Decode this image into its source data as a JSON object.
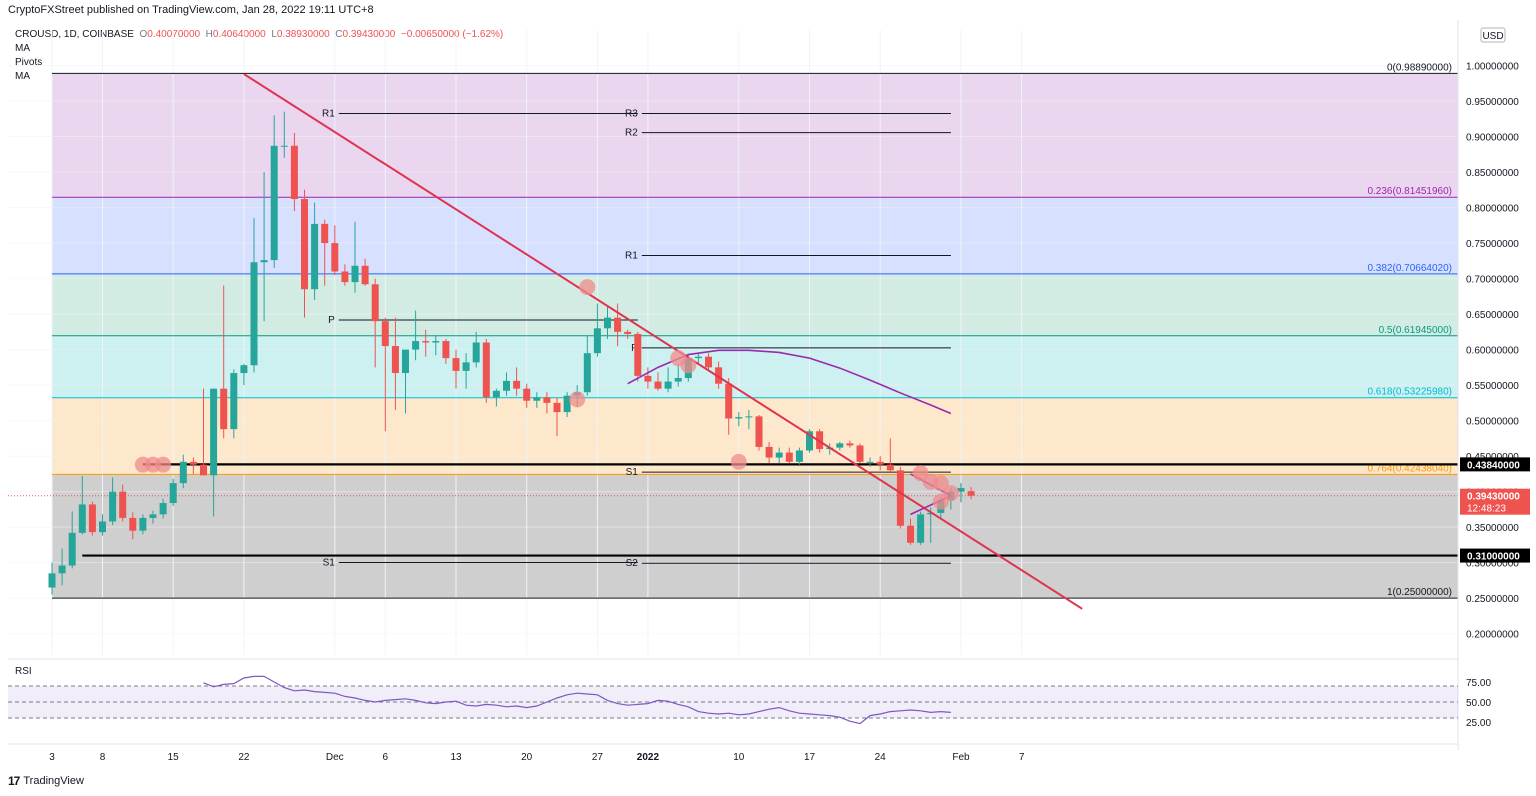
{
  "header": {
    "publisher": "CryptoFXStreet published on TradingView.com, Jan 28, 2022 19:11 UTC+8"
  },
  "legend": {
    "symbol": "CROUSD, 1D, COINBASE",
    "o_label": "O",
    "o_value": "0.40070000",
    "h_label": "H",
    "h_value": "0.40640000",
    "l_label": "L",
    "l_value": "0.38930000",
    "c_label": "C",
    "c_value": "0.39430000",
    "change": "−0.00650000 (−1.62%)",
    "indicators": [
      "MA",
      "Pivots",
      "MA"
    ]
  },
  "footer": {
    "brand": "TradingView"
  },
  "colors": {
    "up": "#26a69a",
    "down": "#ef5350",
    "trend": "#e0334f",
    "ma": "#9c27b0",
    "marker": "#f28b8b"
  },
  "chart_data": {
    "type": "candlestick",
    "symbol": "CROUSD",
    "timeframe": "1D",
    "exchange": "COINBASE",
    "currency": "USD",
    "ylim": [
      0.17,
      1.05
    ],
    "y_ticks": [
      "1.00000000",
      "0.95000000",
      "0.90000000",
      "0.85000000",
      "0.80000000",
      "0.75000000",
      "0.70000000",
      "0.65000000",
      "0.60000000",
      "0.55000000",
      "0.50000000",
      "0.45000000",
      "0.40000000",
      "0.35000000",
      "0.30000000",
      "0.25000000",
      "0.20000000"
    ],
    "y_tick_values": [
      1.0,
      0.95,
      0.9,
      0.85,
      0.8,
      0.75,
      0.7,
      0.65,
      0.6,
      0.55,
      0.5,
      0.45,
      0.4,
      0.35,
      0.3,
      0.25,
      0.2
    ],
    "x_start": "2021-11-03",
    "x_ticks": [
      {
        "label": "3",
        "day": 0
      },
      {
        "label": "8",
        "day": 5
      },
      {
        "label": "15",
        "day": 12
      },
      {
        "label": "22",
        "day": 19
      },
      {
        "label": "Dec",
        "day": 28
      },
      {
        "label": "6",
        "day": 33
      },
      {
        "label": "13",
        "day": 40
      },
      {
        "label": "20",
        "day": 47
      },
      {
        "label": "27",
        "day": 54
      },
      {
        "label": "2022",
        "day": 59
      },
      {
        "label": "10",
        "day": 68
      },
      {
        "label": "17",
        "day": 75
      },
      {
        "label": "24",
        "day": 82
      },
      {
        "label": "Feb",
        "day": 90
      },
      {
        "label": "7",
        "day": 96
      }
    ],
    "candles": [
      [
        0.265,
        0.3,
        0.255,
        0.285
      ],
      [
        0.285,
        0.32,
        0.268,
        0.296
      ],
      [
        0.296,
        0.372,
        0.292,
        0.342
      ],
      [
        0.342,
        0.422,
        0.34,
        0.382
      ],
      [
        0.382,
        0.386,
        0.338,
        0.343
      ],
      [
        0.343,
        0.368,
        0.338,
        0.358
      ],
      [
        0.358,
        0.42,
        0.353,
        0.4
      ],
      [
        0.4,
        0.41,
        0.358,
        0.363
      ],
      [
        0.363,
        0.371,
        0.333,
        0.345
      ],
      [
        0.345,
        0.368,
        0.34,
        0.363
      ],
      [
        0.363,
        0.373,
        0.355,
        0.368
      ],
      [
        0.368,
        0.39,
        0.362,
        0.384
      ],
      [
        0.384,
        0.418,
        0.38,
        0.412
      ],
      [
        0.412,
        0.452,
        0.405,
        0.442
      ],
      [
        0.442,
        0.448,
        0.425,
        0.438
      ],
      [
        0.438,
        0.545,
        0.43,
        0.423
      ],
      [
        0.423,
        0.545,
        0.365,
        0.545
      ],
      [
        0.545,
        0.69,
        0.475,
        0.488
      ],
      [
        0.488,
        0.572,
        0.475,
        0.567
      ],
      [
        0.567,
        0.58,
        0.55,
        0.578
      ],
      [
        0.578,
        0.785,
        0.568,
        0.723
      ],
      [
        0.723,
        0.85,
        0.64,
        0.726
      ],
      [
        0.726,
        0.93,
        0.715,
        0.887
      ],
      [
        0.887,
        0.935,
        0.87,
        0.887
      ],
      [
        0.887,
        0.905,
        0.795,
        0.812
      ],
      [
        0.812,
        0.825,
        0.645,
        0.685
      ],
      [
        0.685,
        0.807,
        0.67,
        0.777
      ],
      [
        0.777,
        0.783,
        0.69,
        0.75
      ],
      [
        0.75,
        0.775,
        0.705,
        0.71
      ],
      [
        0.71,
        0.72,
        0.69,
        0.695
      ],
      [
        0.695,
        0.78,
        0.68,
        0.718
      ],
      [
        0.718,
        0.728,
        0.69,
        0.692
      ],
      [
        0.692,
        0.7,
        0.575,
        0.64
      ],
      [
        0.64,
        0.645,
        0.485,
        0.605
      ],
      [
        0.605,
        0.645,
        0.515,
        0.567
      ],
      [
        0.567,
        0.595,
        0.51,
        0.6
      ],
      [
        0.6,
        0.655,
        0.585,
        0.612
      ],
      [
        0.612,
        0.628,
        0.59,
        0.61
      ],
      [
        0.61,
        0.62,
        0.592,
        0.612
      ],
      [
        0.612,
        0.615,
        0.58,
        0.588
      ],
      [
        0.588,
        0.6,
        0.545,
        0.57
      ],
      [
        0.57,
        0.595,
        0.545,
        0.582
      ],
      [
        0.582,
        0.625,
        0.575,
        0.61
      ],
      [
        0.61,
        0.615,
        0.525,
        0.533
      ],
      [
        0.533,
        0.545,
        0.52,
        0.542
      ],
      [
        0.542,
        0.568,
        0.535,
        0.556
      ],
      [
        0.556,
        0.575,
        0.535,
        0.545
      ],
      [
        0.545,
        0.552,
        0.518,
        0.528
      ],
      [
        0.528,
        0.54,
        0.518,
        0.533
      ],
      [
        0.533,
        0.54,
        0.51,
        0.525
      ],
      [
        0.525,
        0.532,
        0.478,
        0.512
      ],
      [
        0.512,
        0.54,
        0.505,
        0.535
      ],
      [
        0.535,
        0.55,
        0.52,
        0.54
      ],
      [
        0.54,
        0.62,
        0.535,
        0.595
      ],
      [
        0.595,
        0.665,
        0.59,
        0.63
      ],
      [
        0.63,
        0.66,
        0.615,
        0.645
      ],
      [
        0.645,
        0.665,
        0.605,
        0.625
      ],
      [
        0.625,
        0.628,
        0.615,
        0.622
      ],
      [
        0.622,
        0.625,
        0.555,
        0.563
      ],
      [
        0.563,
        0.575,
        0.545,
        0.555
      ],
      [
        0.555,
        0.568,
        0.542,
        0.545
      ],
      [
        0.545,
        0.575,
        0.54,
        0.555
      ],
      [
        0.555,
        0.58,
        0.548,
        0.56
      ],
      [
        0.56,
        0.592,
        0.555,
        0.588
      ],
      [
        0.588,
        0.595,
        0.58,
        0.59
      ],
      [
        0.59,
        0.595,
        0.57,
        0.575
      ],
      [
        0.575,
        0.583,
        0.545,
        0.552
      ],
      [
        0.552,
        0.56,
        0.48,
        0.503
      ],
      [
        0.503,
        0.512,
        0.492,
        0.505
      ],
      [
        0.505,
        0.515,
        0.488,
        0.506
      ],
      [
        0.506,
        0.508,
        0.458,
        0.463
      ],
      [
        0.463,
        0.47,
        0.44,
        0.448
      ],
      [
        0.448,
        0.462,
        0.44,
        0.455
      ],
      [
        0.455,
        0.462,
        0.44,
        0.442
      ],
      [
        0.442,
        0.462,
        0.438,
        0.458
      ],
      [
        0.458,
        0.488,
        0.455,
        0.485
      ],
      [
        0.485,
        0.488,
        0.455,
        0.46
      ],
      [
        0.46,
        0.468,
        0.452,
        0.462
      ],
      [
        0.462,
        0.47,
        0.458,
        0.468
      ],
      [
        0.468,
        0.472,
        0.462,
        0.465
      ],
      [
        0.465,
        0.468,
        0.44,
        0.442
      ],
      [
        0.442,
        0.448,
        0.435,
        0.442
      ],
      [
        0.442,
        0.45,
        0.43,
        0.438
      ],
      [
        0.438,
        0.475,
        0.428,
        0.43
      ],
      [
        0.43,
        0.435,
        0.348,
        0.352
      ],
      [
        0.352,
        0.362,
        0.325,
        0.328
      ],
      [
        0.328,
        0.372,
        0.325,
        0.368
      ],
      [
        0.368,
        0.378,
        0.328,
        0.37
      ],
      [
        0.37,
        0.392,
        0.362,
        0.388
      ],
      [
        0.388,
        0.405,
        0.375,
        0.4
      ],
      [
        0.4,
        0.412,
        0.385,
        0.405
      ],
      [
        0.4007,
        0.4064,
        0.3893,
        0.3943
      ]
    ],
    "ma_points": [
      [
        57,
        0.552
      ],
      [
        60,
        0.575
      ],
      [
        63,
        0.593
      ],
      [
        66,
        0.599
      ],
      [
        69,
        0.599
      ],
      [
        72,
        0.596
      ],
      [
        75,
        0.588
      ],
      [
        78,
        0.574
      ],
      [
        81,
        0.557
      ],
      [
        84,
        0.539
      ],
      [
        87,
        0.522
      ],
      [
        89,
        0.51
      ]
    ],
    "fib_levels": [
      {
        "label": "0(0.98890000)",
        "value": 0.9889
      },
      {
        "label": "0.236(0.81451960)",
        "value": 0.8145196
      },
      {
        "label": "0.382(0.70664020)",
        "value": 0.7066402
      },
      {
        "label": "0.5(0.61945000)",
        "value": 0.61945
      },
      {
        "label": "0.618(0.53225980)",
        "value": 0.5322598
      },
      {
        "label": "0.764(0.42438040)",
        "value": 0.4243804
      },
      {
        "label": "1(0.25000000)",
        "value": 0.25
      }
    ],
    "pivots": [
      {
        "label": "R1",
        "value": 0.9325,
        "x0": 28,
        "x1": 58
      },
      {
        "label": "P",
        "value": 0.6417,
        "x0": 28,
        "x1": 58
      },
      {
        "label": "S1",
        "value": 0.3002,
        "x0": 28,
        "x1": 58
      },
      {
        "label": "R3",
        "value": 0.9325,
        "x0": 58,
        "x1": 89
      },
      {
        "label": "R2",
        "value": 0.9055,
        "x0": 58,
        "x1": 89
      },
      {
        "label": "R1",
        "value": 0.7325,
        "x0": 58,
        "x1": 89
      },
      {
        "label": "P",
        "value": 0.6025,
        "x0": 58,
        "x1": 89
      },
      {
        "label": "S1",
        "value": 0.4275,
        "x0": 58,
        "x1": 89
      },
      {
        "label": "S2",
        "value": 0.2992,
        "x0": 58,
        "x1": 89
      }
    ],
    "horizontal_levels": [
      {
        "label": "0.43840000",
        "value": 0.4384,
        "x0": 9
      },
      {
        "label": "0.31000000",
        "value": 0.31,
        "x0": 3
      }
    ],
    "current_price": {
      "label": "0.39430000",
      "countdown": "12:48:23",
      "value": 0.3943
    },
    "trendline": {
      "from": [
        19,
        0.988
      ],
      "to": [
        102,
        0.235
      ]
    },
    "triangle": {
      "apex": [
        89,
        0.3943
      ],
      "upper": [
        85,
        0.425
      ],
      "lower": [
        85,
        0.368
      ]
    },
    "markers": [
      [
        9,
        0.438
      ],
      [
        10,
        0.438
      ],
      [
        11,
        0.438
      ],
      [
        52,
        0.53
      ],
      [
        53,
        0.688
      ],
      [
        62,
        0.588
      ],
      [
        63,
        0.578
      ],
      [
        68,
        0.442
      ],
      [
        86,
        0.426
      ],
      [
        87,
        0.414
      ],
      [
        88,
        0.412
      ],
      [
        88,
        0.386
      ],
      [
        89,
        0.398
      ]
    ],
    "rsi": {
      "label": "RSI",
      "ticks": [
        "75.00",
        "50.00",
        "25.00"
      ],
      "tick_values": [
        75,
        50,
        25
      ],
      "band": [
        30,
        70
      ],
      "points": [
        [
          15,
          74
        ],
        [
          16,
          69
        ],
        [
          17,
          72
        ],
        [
          18,
          73
        ],
        [
          19,
          80
        ],
        [
          20,
          82
        ],
        [
          21,
          82
        ],
        [
          22,
          75
        ],
        [
          23,
          68
        ],
        [
          24,
          64
        ],
        [
          25,
          65
        ],
        [
          26,
          63
        ],
        [
          27,
          62
        ],
        [
          28,
          61
        ],
        [
          29,
          57
        ],
        [
          30,
          55
        ],
        [
          31,
          52
        ],
        [
          32,
          50
        ],
        [
          33,
          52
        ],
        [
          34,
          53
        ],
        [
          35,
          54
        ],
        [
          36,
          52
        ],
        [
          37,
          49
        ],
        [
          38,
          48
        ],
        [
          39,
          50
        ],
        [
          40,
          51
        ],
        [
          41,
          46
        ],
        [
          42,
          45
        ],
        [
          43,
          47
        ],
        [
          44,
          46
        ],
        [
          45,
          44
        ],
        [
          46,
          45
        ],
        [
          47,
          43
        ],
        [
          48,
          45
        ],
        [
          49,
          50
        ],
        [
          50,
          55
        ],
        [
          51,
          59
        ],
        [
          52,
          61
        ],
        [
          53,
          60
        ],
        [
          54,
          59
        ],
        [
          55,
          52
        ],
        [
          56,
          48
        ],
        [
          57,
          46
        ],
        [
          58,
          47
        ],
        [
          59,
          48
        ],
        [
          60,
          52
        ],
        [
          61,
          51
        ],
        [
          62,
          47
        ],
        [
          63,
          44
        ],
        [
          64,
          38
        ],
        [
          65,
          36
        ],
        [
          66,
          35
        ],
        [
          67,
          36
        ],
        [
          68,
          34
        ],
        [
          69,
          35
        ],
        [
          70,
          38
        ],
        [
          71,
          41
        ],
        [
          72,
          43
        ],
        [
          73,
          39
        ],
        [
          74,
          36
        ],
        [
          75,
          35
        ],
        [
          76,
          34
        ],
        [
          77,
          33
        ],
        [
          78,
          31
        ],
        [
          79,
          26
        ],
        [
          80,
          23
        ],
        [
          81,
          33
        ],
        [
          82,
          35
        ],
        [
          83,
          38
        ],
        [
          84,
          39
        ],
        [
          85,
          40
        ],
        [
          86,
          39
        ],
        [
          87,
          37
        ],
        [
          88,
          38
        ],
        [
          89,
          37
        ]
      ]
    },
    "zones": [
      {
        "from": 0.9889,
        "to": 0.8145196,
        "color": "#ead6ef"
      },
      {
        "from": 0.8145196,
        "to": 0.7066402,
        "color": "#d7e0ff"
      },
      {
        "from": 0.7066402,
        "to": 0.61945,
        "color": "#d2ece3"
      },
      {
        "from": 0.61945,
        "to": 0.5322598,
        "color": "#cdf0f0"
      },
      {
        "from": 0.5322598,
        "to": 0.4243804,
        "color": "#fde8cc"
      },
      {
        "from": 0.4243804,
        "to": 0.25,
        "color": "#cfcfcf"
      }
    ]
  }
}
